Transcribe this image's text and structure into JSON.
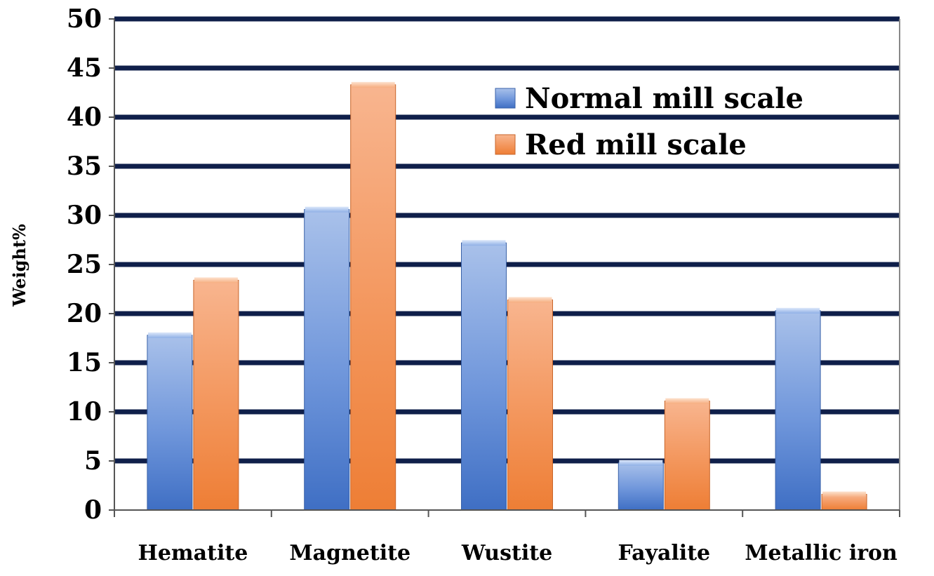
{
  "chart_data": {
    "type": "bar",
    "title": "",
    "xlabel": "",
    "ylabel": "Weight%",
    "ylim": [
      0,
      50
    ],
    "yticks": [
      0,
      5,
      10,
      15,
      20,
      25,
      30,
      35,
      40,
      45,
      50
    ],
    "categories": [
      "Hematite",
      "Magnetite",
      "Wustite",
      "Fayalite",
      "Metallic iron"
    ],
    "series": [
      {
        "name": "Normal mill scale",
        "values": [
          17.8,
          30.6,
          27.2,
          4.8,
          20.3
        ],
        "color": "#4f7fd0"
      },
      {
        "name": "Red mill scale",
        "values": [
          23.4,
          43.3,
          21.4,
          11.1,
          1.6
        ],
        "color": "#f08a48"
      }
    ],
    "grid": true,
    "gridline_color": "#0f1f4a",
    "legend_position": "top-right"
  }
}
